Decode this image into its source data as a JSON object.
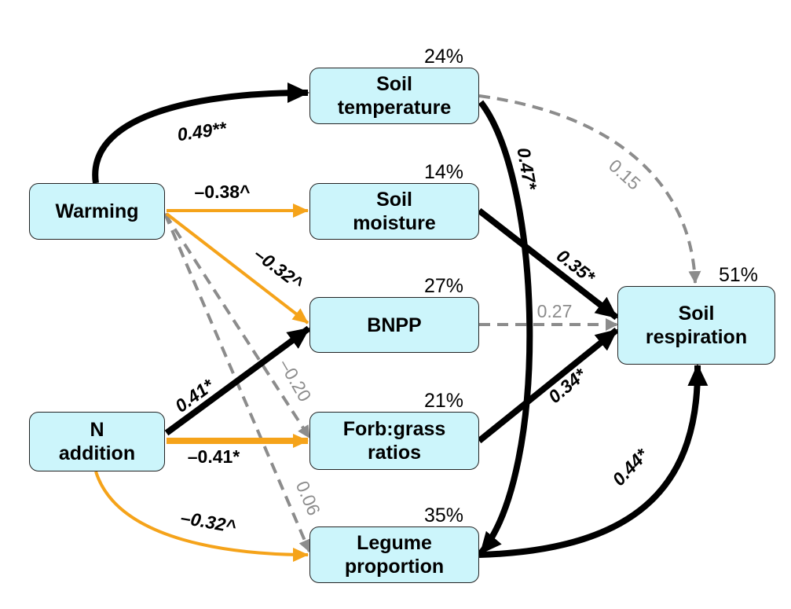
{
  "nodes": {
    "warming": {
      "label": "Warming"
    },
    "n_addition": {
      "label": "N\naddition"
    },
    "soil_temperature": {
      "label": "Soil\ntemperature",
      "r2": "24%"
    },
    "soil_moisture": {
      "label": "Soil\nmoisture",
      "r2": "14%"
    },
    "bnpp": {
      "label": "BNPP",
      "r2": "27%"
    },
    "forb_grass": {
      "label": "Forb:grass\nratios",
      "r2": "21%"
    },
    "legume": {
      "label": "Legume\nproportion",
      "r2": "35%"
    },
    "soil_respiration": {
      "label": "Soil\nrespiration",
      "r2": "51%"
    }
  },
  "paths": [
    {
      "from": "Warming",
      "to": "Soil temperature",
      "coef": "0.49**",
      "style": "positive"
    },
    {
      "from": "Warming",
      "to": "Soil moisture",
      "coef": "–0.38^",
      "style": "negative"
    },
    {
      "from": "Warming",
      "to": "BNPP",
      "coef": "–0.32^",
      "style": "negative"
    },
    {
      "from": "Warming",
      "to": "Forb:grass ratios",
      "coef": "–0.20",
      "style": "nonsignificant"
    },
    {
      "from": "Warming",
      "to": "Legume proportion",
      "coef": "0.06",
      "style": "nonsignificant"
    },
    {
      "from": "N addition",
      "to": "BNPP",
      "coef": "0.41*",
      "style": "positive"
    },
    {
      "from": "N addition",
      "to": "Forb:grass ratios",
      "coef": "–0.41*",
      "style": "negative"
    },
    {
      "from": "N addition",
      "to": "Legume proportion",
      "coef": "–0.32^",
      "style": "negative"
    },
    {
      "from": "Soil temperature",
      "to": "Legume proportion",
      "coef": "0.47*",
      "style": "positive"
    },
    {
      "from": "Soil temperature",
      "to": "Soil respiration",
      "coef": "0.15",
      "style": "nonsignificant"
    },
    {
      "from": "Soil moisture",
      "to": "Soil respiration",
      "coef": "0.35*",
      "style": "positive"
    },
    {
      "from": "BNPP",
      "to": "Soil respiration",
      "coef": "0.27",
      "style": "nonsignificant"
    },
    {
      "from": "Forb:grass ratios",
      "to": "Soil respiration",
      "coef": "0.34*",
      "style": "positive"
    },
    {
      "from": "Legume proportion",
      "to": "Soil respiration",
      "coef": "0.44*",
      "style": "positive"
    }
  ],
  "colors": {
    "positive": "#000000",
    "negative": "#f5a31a",
    "nonsignificant": "#8c8c8c",
    "node_fill": "#ccf5fb"
  }
}
